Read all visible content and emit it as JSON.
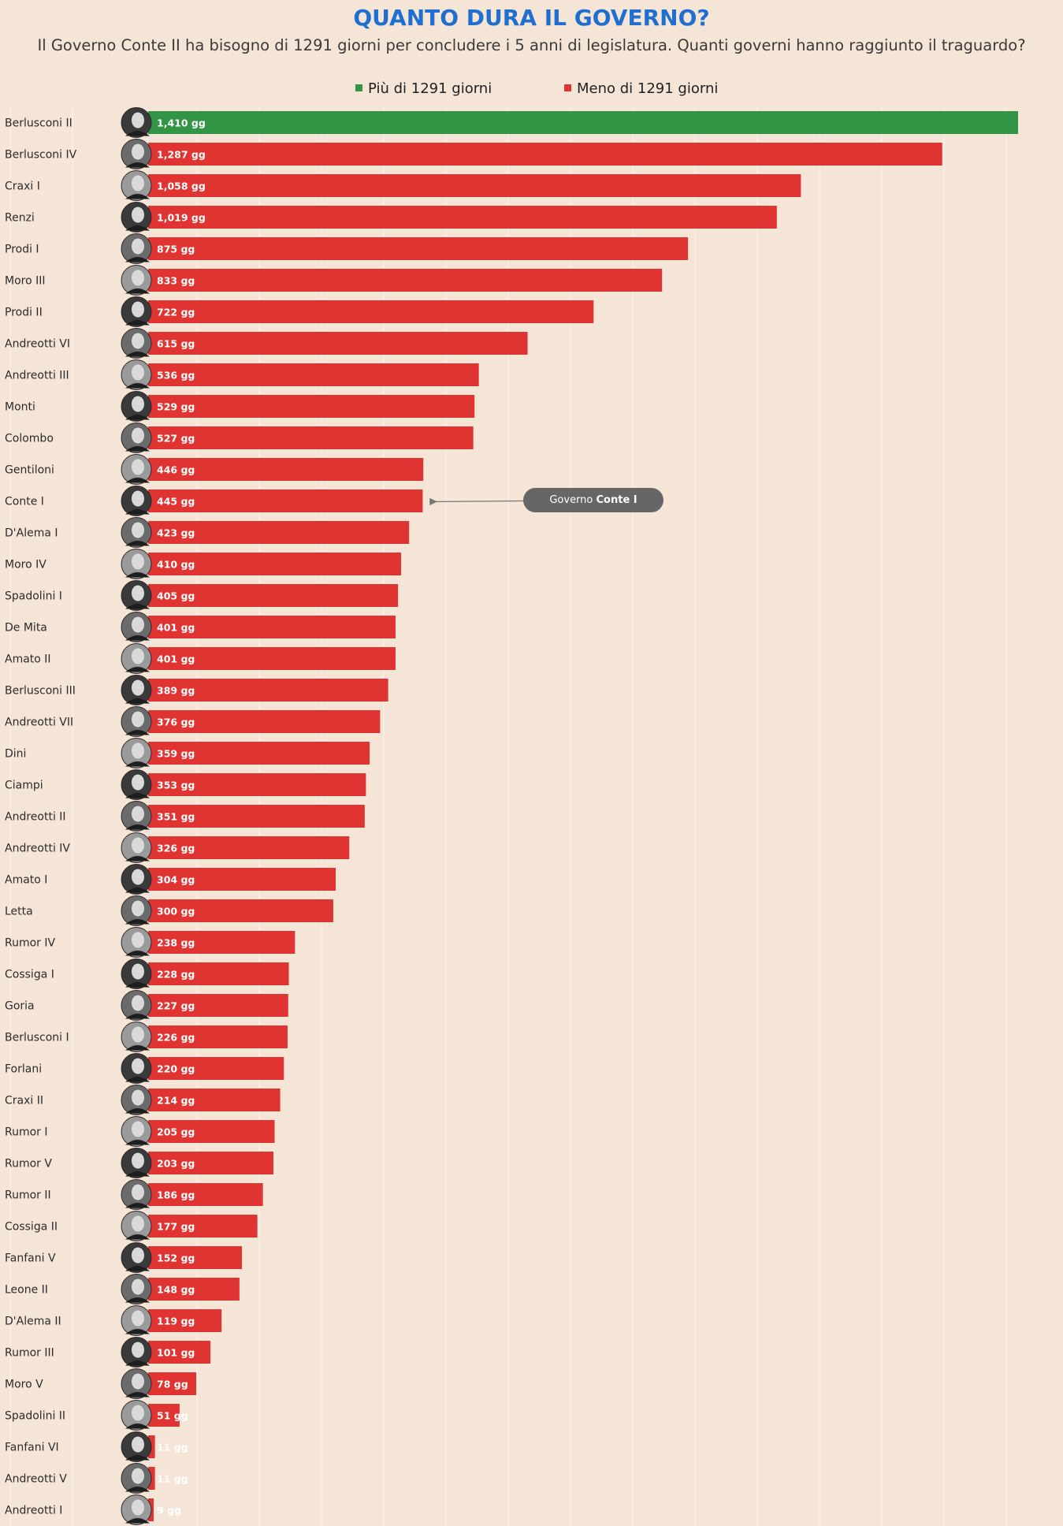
{
  "title": "QUANTO DURA IL GOVERNO?",
  "subtitle": "Il Governo Conte II ha bisogno di 1291 giorni per concludere i 5 anni di legislatura. Quanti governi hanno raggiunto il traguardo?",
  "legend": {
    "above_label": "Più di 1291 giorni",
    "below_label": "Meno di 1291 giorni"
  },
  "colors": {
    "above": "#329445",
    "below": "#e03432",
    "background": "#f5e5d6"
  },
  "annotation": {
    "prefix": "Governo",
    "strong": "Conte I",
    "target": "Conte I"
  },
  "chart_data": {
    "type": "bar",
    "orientation": "horizontal",
    "title": "QUANTO DURA IL GOVERNO?",
    "threshold": 1291,
    "value_suffix": " gg",
    "xlim": [
      0,
      1410
    ],
    "categories": [
      "Berlusconi  II",
      "Berlusconi  IV",
      "Craxi  I",
      "Renzi",
      "Prodi I",
      "Moro  III",
      "Prodi  II",
      "Andreotti  VI",
      "Andreotti  III",
      "Monti",
      "Colombo",
      "Gentiloni",
      "Conte I",
      "D'Alema  I",
      "Moro  IV",
      "Spadolini  I",
      "De Mita",
      "Amato  II",
      "Berlusconi  III",
      "Andreotti  VII",
      "Dini",
      "Ciampi",
      "Andreotti  II",
      "Andreotti  IV",
      "Amato  I",
      "Letta",
      "Rumor IV",
      "Cossiga  I",
      "Goria",
      "Berlusconi  I",
      "Forlani",
      "Craxi  II",
      "Rumor  I",
      "Rumor  V",
      "Rumor  II",
      "Cossiga  II",
      "Fanfani  V",
      "Leone II",
      "D'Alema  II",
      "Rumor  III",
      "Moro  V",
      "Spadolini  II",
      "Fanfani VI",
      "Andreotti  V",
      "Andreotti  I"
    ],
    "values": [
      1410,
      1287,
      1058,
      1019,
      875,
      833,
      722,
      615,
      536,
      529,
      527,
      446,
      445,
      423,
      410,
      405,
      401,
      401,
      389,
      376,
      359,
      353,
      351,
      326,
      304,
      300,
      238,
      228,
      227,
      226,
      220,
      214,
      205,
      203,
      186,
      177,
      152,
      148,
      119,
      101,
      78,
      51,
      11,
      11,
      9
    ],
    "value_labels": [
      "1,410 gg",
      "1,287 gg",
      "1,058 gg",
      "1,019 gg",
      "875 gg",
      "833 gg",
      "722 gg",
      "615 gg",
      "536 gg",
      "529 gg",
      "527 gg",
      "446 gg",
      "445 gg",
      "423 gg",
      "410 gg",
      "405 gg",
      "401 gg",
      "401 gg",
      "389 gg",
      "376 gg",
      "359 gg",
      "353 gg",
      "351 gg",
      "326 gg",
      "304 gg",
      "300 gg",
      "238 gg",
      "228 gg",
      "227 gg",
      "226 gg",
      "220 gg",
      "214 gg",
      "205 gg",
      "203 gg",
      "186 gg",
      "177 gg",
      "152 gg",
      "148 gg",
      "119 gg",
      "101 gg",
      "78 gg",
      "51 gg",
      "11 gg",
      "11 gg",
      "9 gg"
    ],
    "xlabel": "",
    "ylabel": "",
    "grid": true
  }
}
